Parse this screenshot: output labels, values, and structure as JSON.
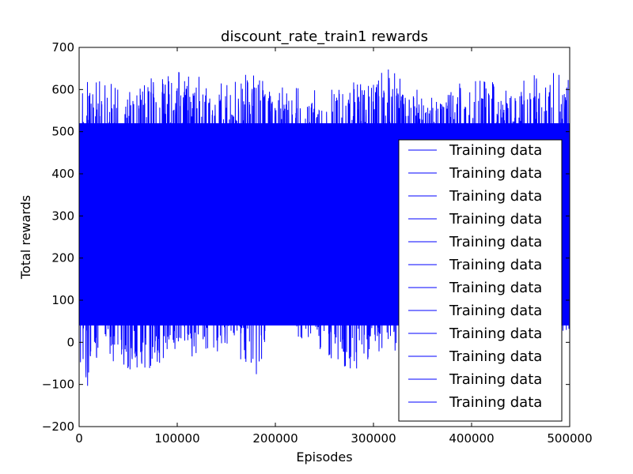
{
  "chart_data": {
    "type": "line",
    "title": "discount_rate_train1 rewards",
    "xlabel": "Episodes",
    "ylabel": "Total rewards",
    "xlim": [
      0,
      500000
    ],
    "ylim": [
      -200,
      700
    ],
    "x_ticks": [
      0,
      100000,
      200000,
      300000,
      400000,
      500000
    ],
    "x_tick_labels": [
      "0",
      "100000",
      "200000",
      "300000",
      "400000",
      "500000"
    ],
    "y_ticks": [
      -200,
      -100,
      0,
      100,
      200,
      300,
      400,
      500,
      600,
      700
    ],
    "y_tick_labels": [
      "−200",
      "−100",
      "0",
      "100",
      "200",
      "300",
      "400",
      "500",
      "600",
      "700"
    ],
    "grid": false,
    "line_color": "#0000ff",
    "legend_position": "lower-right",
    "series": [
      {
        "name": "Training data"
      },
      {
        "name": "Training data"
      },
      {
        "name": "Training data"
      },
      {
        "name": "Training data"
      },
      {
        "name": "Training data"
      },
      {
        "name": "Training data"
      },
      {
        "name": "Training data"
      },
      {
        "name": "Training data"
      },
      {
        "name": "Training data"
      },
      {
        "name": "Training data"
      },
      {
        "name": "Training data"
      },
      {
        "name": "Training data"
      }
    ],
    "envelope": {
      "x": [
        0,
        10000,
        20000,
        50000,
        100000,
        150000,
        180000,
        200000,
        250000,
        280000,
        300000,
        350000,
        400000,
        450000,
        500000
      ],
      "upper": [
        590,
        640,
        620,
        610,
        650,
        620,
        650,
        610,
        600,
        620,
        670,
        600,
        620,
        640,
        650
      ],
      "lower": [
        -125,
        -100,
        -20,
        -80,
        -40,
        -20,
        -80,
        50,
        -30,
        -80,
        -30,
        -20,
        0,
        -10,
        10
      ]
    }
  }
}
